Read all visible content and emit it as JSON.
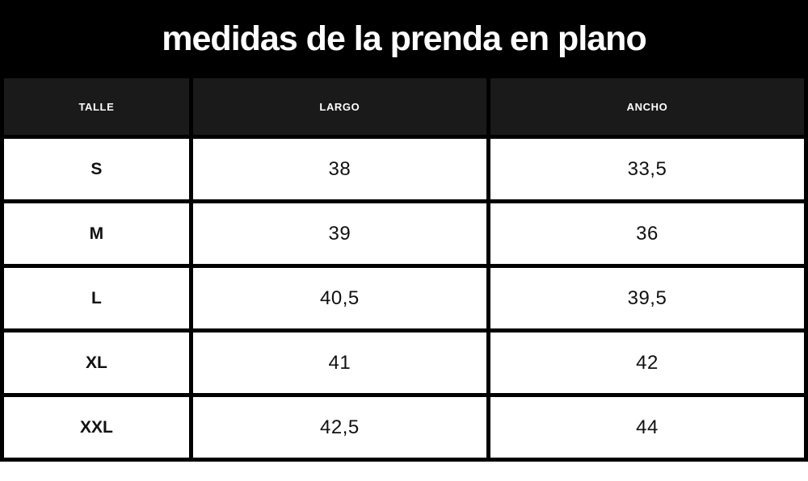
{
  "title": "medidas de la prenda en plano",
  "table": {
    "columns": [
      "TALLE",
      "LARGO",
      "ANCHO"
    ],
    "rows": [
      {
        "talle": "S",
        "largo": "38",
        "ancho": "33,5"
      },
      {
        "talle": "M",
        "largo": "39",
        "ancho": "36"
      },
      {
        "talle": "L",
        "largo": "40,5",
        "ancho": "39,5"
      },
      {
        "talle": "XL",
        "largo": "41",
        "ancho": "42"
      },
      {
        "talle": "XXL",
        "largo": "42,5",
        "ancho": "44"
      }
    ]
  },
  "colors": {
    "banner_background": "#000000",
    "banner_text": "#ffffff",
    "header_background": "#1a1a1a",
    "header_text": "#ffffff",
    "body_background": "#ffffff",
    "body_text": "#111111",
    "border": "#000000"
  },
  "chart_data": {
    "type": "table",
    "title": "medidas de la prenda en plano",
    "columns": [
      "TALLE",
      "LARGO",
      "ANCHO"
    ],
    "categories": [
      "S",
      "M",
      "L",
      "XL",
      "XXL"
    ],
    "series": [
      {
        "name": "LARGO",
        "values": [
          38,
          39,
          40.5,
          41,
          42.5
        ]
      },
      {
        "name": "ANCHO",
        "values": [
          33.5,
          36,
          39.5,
          42,
          44
        ]
      }
    ],
    "notes": "decimal separator shown as comma in source image"
  }
}
